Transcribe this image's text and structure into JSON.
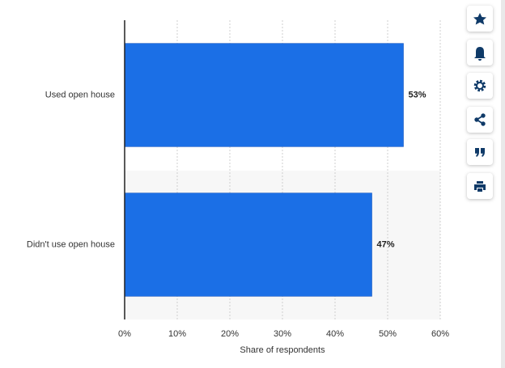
{
  "chart_data": {
    "type": "bar",
    "orientation": "horizontal",
    "categories": [
      "Used open house",
      "Didn't use open house"
    ],
    "values": [
      53,
      47
    ],
    "value_labels": [
      "53%",
      "47%"
    ],
    "color": "#1b6fe6",
    "xlim": [
      0,
      60
    ],
    "xticks": [
      {
        "value": 0,
        "label": "0%"
      },
      {
        "value": 10,
        "label": "10%"
      },
      {
        "value": 20,
        "label": "20%"
      },
      {
        "value": 30,
        "label": "30%"
      },
      {
        "value": 40,
        "label": "40%"
      },
      {
        "value": 50,
        "label": "50%"
      },
      {
        "value": 60,
        "label": "60%"
      }
    ],
    "x_label": "Share of respondents",
    "grid": true
  }
}
